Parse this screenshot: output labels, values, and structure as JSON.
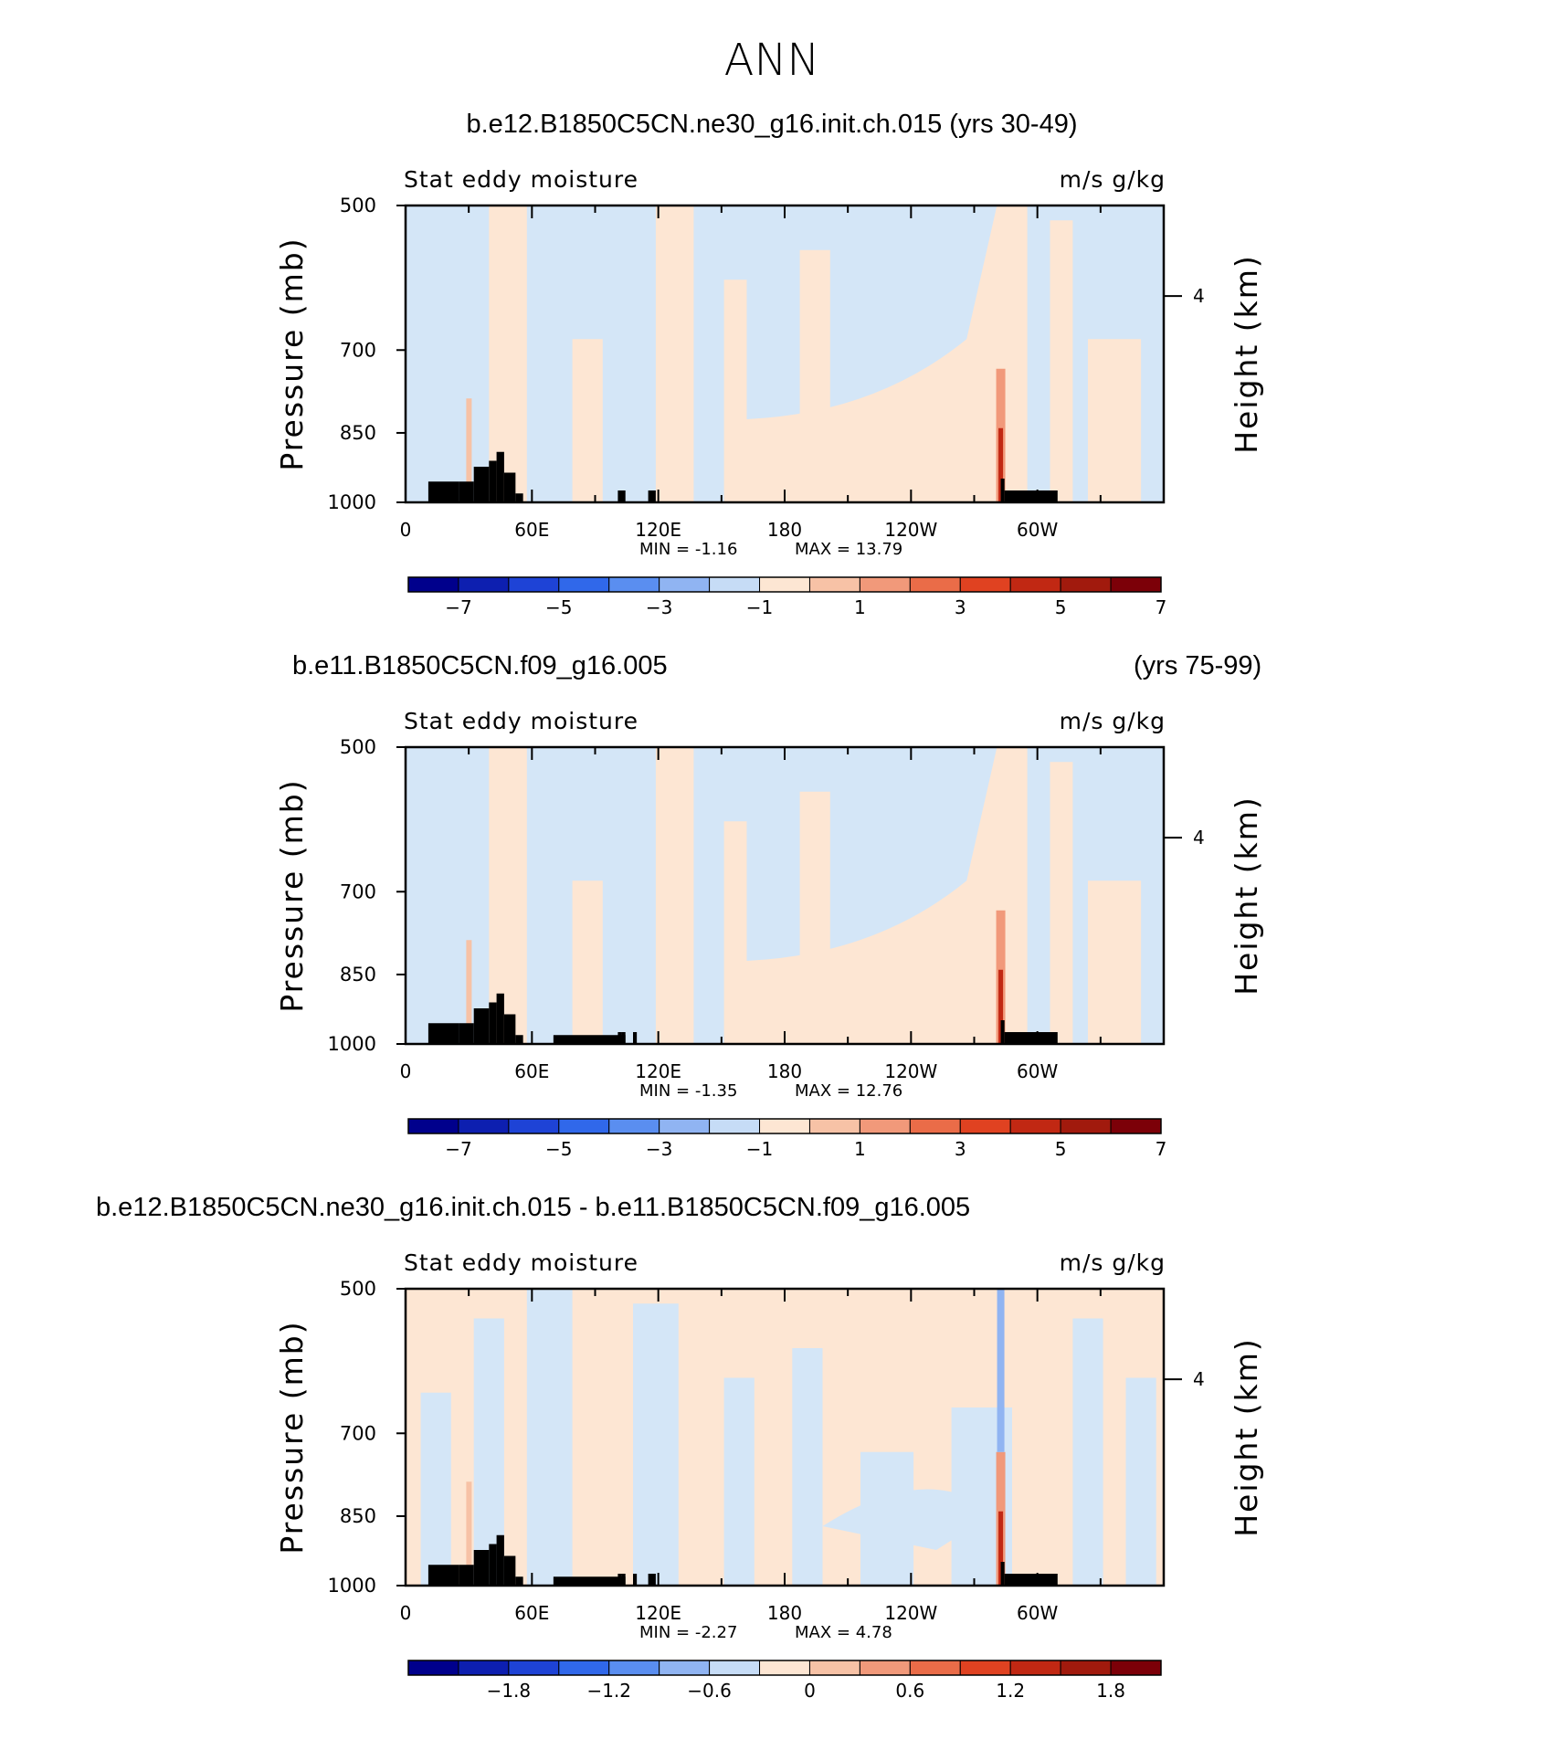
{
  "main_title": "ANN",
  "colors": {
    "light_blue": "#d4e6f7",
    "light_peach": "#fde6d3",
    "land": "#000000",
    "frame": "#000000"
  },
  "colorbar_colors": [
    "#00008c",
    "#0d1fb0",
    "#1e43d6",
    "#3068ea",
    "#5a8ef0",
    "#90b4f2",
    "#c6dcf6",
    "#fde6d3",
    "#f7c2a6",
    "#f1997a",
    "#ea6c48",
    "#e04221",
    "#c12813",
    "#a11a0d",
    "#7c0008"
  ],
  "chart_data": [
    {
      "type": "heatmap",
      "title": "b.e12.B1850C5CN.ne30_g16.init.ch.015 (yrs 30-49)",
      "subtitle_left": "Stat eddy moisture",
      "subtitle_right": "m/s g/kg",
      "ylabel": "Pressure (mb)",
      "ylabel_right": "Height (km)",
      "x_ticks": [
        "0",
        "60E",
        "120E",
        "180",
        "120W",
        "60W"
      ],
      "y_ticks": [
        "500",
        "700",
        "850",
        "1000"
      ],
      "y_ticks_right": [
        "4"
      ],
      "stats": {
        "min": "MIN =   -1.16",
        "max": "MAX =   13.79"
      },
      "colorbar_labels": [
        "-7",
        "-5",
        "-3",
        "-1",
        "1",
        "3",
        "5",
        "7"
      ]
    },
    {
      "type": "heatmap",
      "title": "b.e11.B1850C5CN.f09_g16.005",
      "title_right": "(yrs 75-99)",
      "subtitle_left": "Stat eddy moisture",
      "subtitle_right": "m/s g/kg",
      "ylabel": "Pressure (mb)",
      "ylabel_right": "Height (km)",
      "x_ticks": [
        "0",
        "60E",
        "120E",
        "180",
        "120W",
        "60W"
      ],
      "y_ticks": [
        "500",
        "700",
        "850",
        "1000"
      ],
      "y_ticks_right": [
        "4"
      ],
      "stats": {
        "min": "MIN =   -1.35",
        "max": "MAX =   12.76"
      },
      "colorbar_labels": [
        "-7",
        "-5",
        "-3",
        "-1",
        "1",
        "3",
        "5",
        "7"
      ]
    },
    {
      "type": "heatmap",
      "title": "b.e12.B1850C5CN.ne30_g16.init.ch.015 - b.e11.B1850C5CN.f09_g16.005",
      "subtitle_left": "Stat eddy moisture",
      "subtitle_right": "m/s g/kg",
      "ylabel": "Pressure (mb)",
      "ylabel_right": "Height (km)",
      "x_ticks": [
        "0",
        "60E",
        "120E",
        "180",
        "120W",
        "60W"
      ],
      "y_ticks": [
        "500",
        "700",
        "850",
        "1000"
      ],
      "y_ticks_right": [
        "4"
      ],
      "stats": {
        "min": "MIN =   -2.27",
        "max": "MAX =    4.78"
      },
      "colorbar_labels": [
        "-1.8",
        "-1.2",
        "-0.6",
        "0",
        "0.6",
        "1.2",
        "1.8"
      ]
    }
  ]
}
